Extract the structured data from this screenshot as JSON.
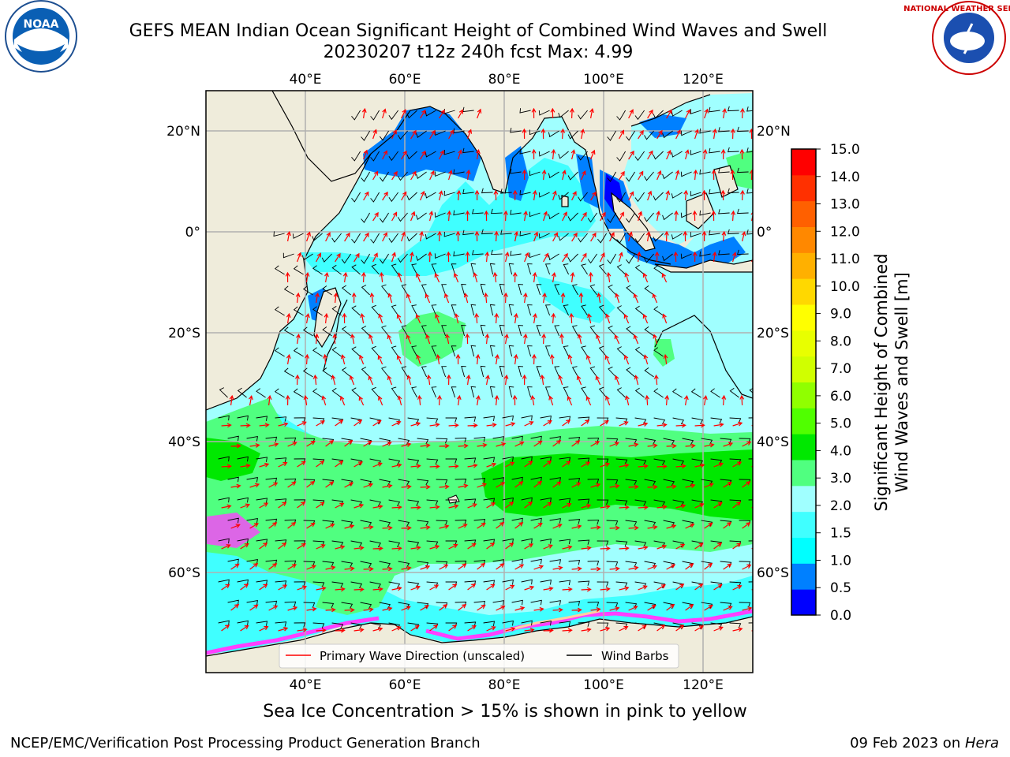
{
  "header": {
    "title_line1": "GEFS MEAN Indian Ocean Significant Height of Combined Wind Waves and Swell",
    "title_line2": "20230207 t12z 240h fcst   Max: 4.99"
  },
  "logos": {
    "left": {
      "icon": "noaa-logo",
      "text": "NOAA"
    },
    "right": {
      "icon": "nws-logo",
      "text": "NATIONAL WEATHER SERVICE"
    }
  },
  "map": {
    "lon_ticks": [
      "40°E",
      "60°E",
      "80°E",
      "100°E",
      "120°E"
    ],
    "lat_ticks_left": [
      "20°N",
      "0°",
      "20°S",
      "40°S",
      "60°S"
    ],
    "lat_ticks_right": [
      "20°N",
      "0°",
      "20°S",
      "40°S",
      "60°S"
    ],
    "lon_range": [
      20,
      130
    ],
    "lat_range": [
      -72,
      28
    ],
    "colors": {
      "land": "#efecdb",
      "grid": "#b0b0b0"
    }
  },
  "legend": {
    "wave_label": "Primary Wave Direction (unscaled)",
    "wave_color": "#ff0000",
    "wind_label": "Wind Barbs",
    "wind_color": "#000000"
  },
  "colorbar": {
    "ticks": [
      "15.0",
      "14.0",
      "13.0",
      "12.0",
      "11.0",
      "10.0",
      "9.0",
      "8.0",
      "7.0",
      "6.0",
      "5.0",
      "4.0",
      "3.0",
      "2.0",
      "1.5",
      "1.0",
      "0.5",
      "0.0"
    ],
    "colors": [
      "#0000ff",
      "#0080ff",
      "#00ffff",
      "#40ffff",
      "#a0ffff",
      "#50ff80",
      "#00e800",
      "#50ff00",
      "#90ff00",
      "#d0ff00",
      "#e8ff00",
      "#ffff00",
      "#ffd800",
      "#ffb000",
      "#ff8800",
      "#ff6000",
      "#ff3000",
      "#ff0000"
    ],
    "label_line1": "Significant Height of Combined",
    "label_line2": "Wind Waves and Swell [m]"
  },
  "footer": {
    "subtitle": "Sea Ice Concentration > 15% is shown in pink to yellow",
    "left": "NCEP/EMC/Verification Post Processing Product Generation Branch",
    "right_prefix": "09 Feb 2023 on ",
    "right_host": "Hera"
  }
}
